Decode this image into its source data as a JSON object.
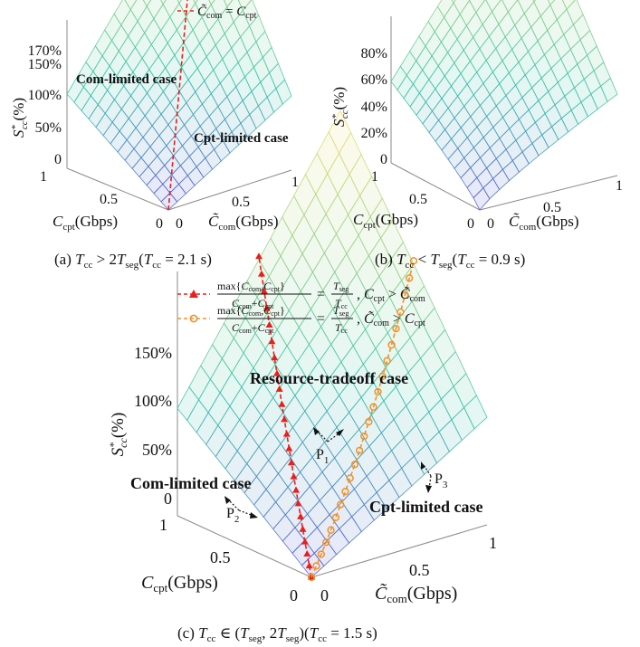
{
  "chart_data": [
    {
      "id": "a",
      "type": "surface",
      "caption": "(a) T_cc > 2T_seg (T_cc = 2.1 s)",
      "xlabel": "C̃_com(Gbps)",
      "ylabel": "C_cpt(Gbps)",
      "zlabel": "S*_cc(%)",
      "x_ticks": [
        "0",
        "0.5",
        "1"
      ],
      "y_ticks": [
        "0",
        "0.5",
        "1"
      ],
      "z_ticks": [
        "0",
        "50%",
        "100%",
        "150%",
        "170%"
      ],
      "z_tick_values": [
        0,
        50,
        100,
        150,
        170
      ],
      "zlim": [
        0,
        170
      ],
      "peak_value": 170,
      "grid": true,
      "legend": "top",
      "legend_entries": [
        "C̃_com = C_cpt"
      ],
      "region_labels": [
        "Com-limited case",
        "Cpt-limited case"
      ]
    },
    {
      "id": "b",
      "type": "surface",
      "caption": "(b) T_cc < T_seg (T_cc = 0.9 s)",
      "xlabel": "C̃_com(Gbps)",
      "ylabel": "C_cpt(Gbps)",
      "zlabel": "S*_cc(%)",
      "x_ticks": [
        "0",
        "0.5",
        "1"
      ],
      "y_ticks": [
        "0",
        "0.5",
        "1"
      ],
      "z_ticks": [
        "0",
        "20%",
        "40%",
        "60%",
        "80%"
      ],
      "z_tick_values": [
        0,
        20,
        40,
        60,
        80
      ],
      "zlim": [
        0,
        85
      ],
      "peak_value": 85,
      "grid": true
    },
    {
      "id": "c",
      "type": "surface",
      "caption": "(c) T_cc ∈ (T_seg, 2T_seg) (T_cc = 1.5 s)",
      "xlabel": "C̃_com(Gbps)",
      "ylabel": "C_cpt(Gbps)",
      "zlabel": "S*_cc(%)",
      "x_ticks": [
        "0",
        "0.5",
        "1"
      ],
      "y_ticks": [
        "0",
        "0.5",
        "1"
      ],
      "z_ticks": [
        "0",
        "50%",
        "100%",
        "150%"
      ],
      "z_tick_values": [
        0,
        50,
        100,
        150
      ],
      "zlim": [
        0,
        150
      ],
      "peak_value": 132,
      "grid": true,
      "legend": "top",
      "legend_entries": [
        "max{C_com, C_cpt} / (C_com + C_cpt) = T_seg / T_cc , C_cpt > C̃_com",
        "max{C_com, C_cpt} / (C_com + C_cpt) = T_seg / T_cc , C̃_com > C_cpt"
      ],
      "region_labels": [
        "Resource-tradeoff case",
        "Com-limited case",
        "Cpt-limited case"
      ],
      "points": [
        "P1",
        "P2",
        "P3"
      ]
    }
  ],
  "colors": {
    "red_line": "#e8201c",
    "orange_line": "#f0922a",
    "surface_low": "#5a55d6",
    "surface_mid": "#3fc4a8",
    "surface_high": "#f4df6a"
  }
}
